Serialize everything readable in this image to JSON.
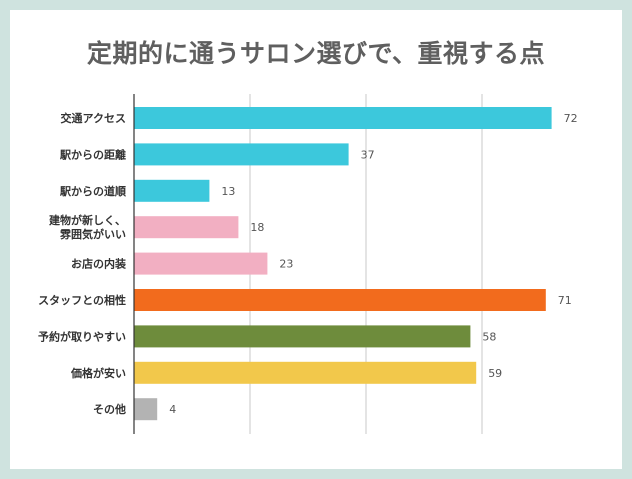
{
  "chart_data": {
    "type": "bar",
    "orientation": "horizontal",
    "title": "定期的に通うサロン選びで、重視する点",
    "xlabel": "",
    "ylabel": "",
    "xlim": [
      0,
      75
    ],
    "gridlines": [
      0,
      20,
      40,
      60
    ],
    "grid": true,
    "categories": [
      [
        "交通アクセス"
      ],
      [
        "駅からの距離"
      ],
      [
        "駅からの道順"
      ],
      [
        "建物が新しく、",
        "雰囲気がいい"
      ],
      [
        "お店の内装"
      ],
      [
        "スタッフとの相性"
      ],
      [
        "予約が取りやすい"
      ],
      [
        "価格が安い"
      ],
      [
        "その他"
      ]
    ],
    "values": [
      72,
      37,
      13,
      18,
      23,
      71,
      58,
      59,
      4
    ],
    "colors": [
      "#3cc8dc",
      "#3cc8dc",
      "#3cc8dc",
      "#f2afc2",
      "#f2afc2",
      "#f26b1d",
      "#6e8c3c",
      "#f2c84b",
      "#b3b3b3"
    ]
  }
}
